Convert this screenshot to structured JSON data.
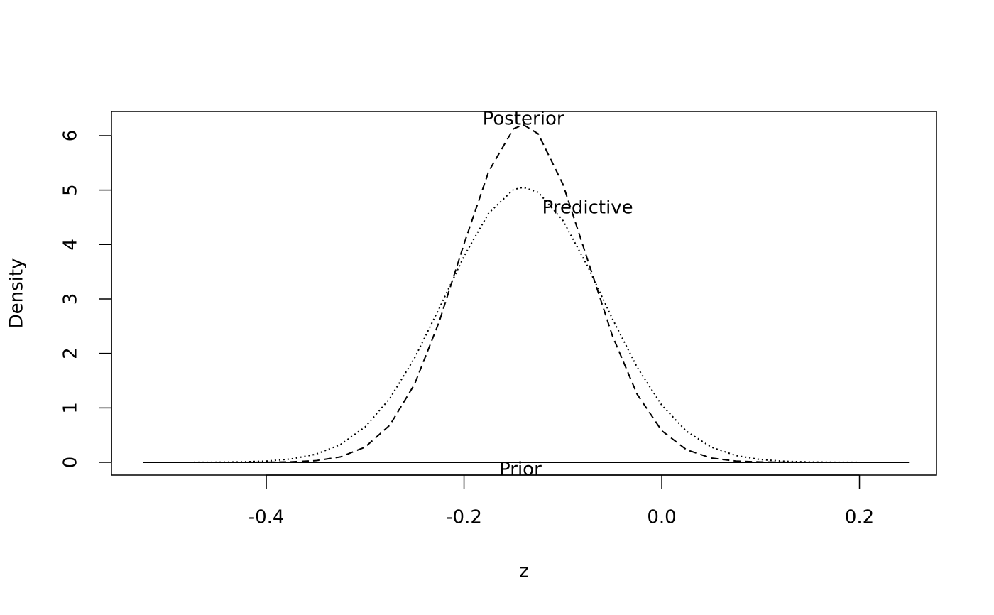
{
  "chart_data": {
    "type": "line",
    "xlabel": "z",
    "ylabel": "Density",
    "x": [
      -0.525,
      -0.5,
      -0.475,
      -0.45,
      -0.425,
      -0.4,
      -0.375,
      -0.35,
      -0.325,
      -0.3,
      -0.275,
      -0.25,
      -0.225,
      -0.2,
      -0.175,
      -0.15,
      -0.14,
      -0.125,
      -0.1,
      -0.075,
      -0.05,
      -0.025,
      0,
      0.025,
      0.05,
      0.075,
      0.1,
      0.125,
      0.15,
      0.175,
      0.2,
      0.225,
      0.25
    ],
    "series": [
      {
        "name": "Prior",
        "color": "#000000",
        "linestyle": "solid",
        "values": [
          0,
          0,
          0,
          0,
          0,
          0,
          0,
          0,
          0,
          0,
          0,
          0,
          0,
          0,
          0,
          0,
          0,
          0,
          0,
          0,
          0,
          0,
          0,
          0,
          0,
          0,
          0,
          0,
          0,
          0,
          0,
          0,
          0
        ]
      },
      {
        "name": "Posterior",
        "color": "#000000",
        "linestyle": "dashed",
        "values": [
          0,
          0,
          0,
          0.0001,
          0.0003,
          0.0017,
          0.0078,
          0.03,
          0.099,
          0.28,
          0.684,
          1.435,
          2.587,
          4.011,
          5.346,
          6.125,
          6.2,
          6.034,
          5.109,
          3.72,
          2.328,
          1.253,
          0.58,
          0.231,
          0.079,
          0.023,
          0.006,
          0.0013,
          0.0002,
          0,
          0,
          0,
          0
        ]
      },
      {
        "name": "Predictive",
        "color": "#000000",
        "linestyle": "dotted",
        "values": [
          0,
          0.0002,
          0.0006,
          0.0023,
          0.0075,
          0.0223,
          0.061,
          0.148,
          0.325,
          0.65,
          1.173,
          1.916,
          2.831,
          3.785,
          4.578,
          5.01,
          5.05,
          4.96,
          4.443,
          3.6,
          2.639,
          1.75,
          1.05,
          0.57,
          0.28,
          0.124,
          0.05,
          0.018,
          0.006,
          0.0018,
          0.0005,
          0.0001,
          0
        ]
      }
    ],
    "annotations": [
      {
        "text": "Posterior",
        "x": -0.14,
        "y": 6.3
      },
      {
        "text": "Predictive",
        "x": -0.075,
        "y": 4.67
      },
      {
        "text": "Prior",
        "x": -0.143,
        "y": -0.14
      }
    ],
    "xlim": [
      -0.5566,
      0.2779
    ],
    "ylim": [
      -0.235,
      6.443
    ],
    "xticks": [
      -0.4,
      -0.2,
      {
        "value": 0,
        "label": "0.0"
      },
      0.2
    ],
    "yticks": [
      0,
      1,
      2,
      3,
      4,
      5,
      6
    ],
    "grid": false
  }
}
